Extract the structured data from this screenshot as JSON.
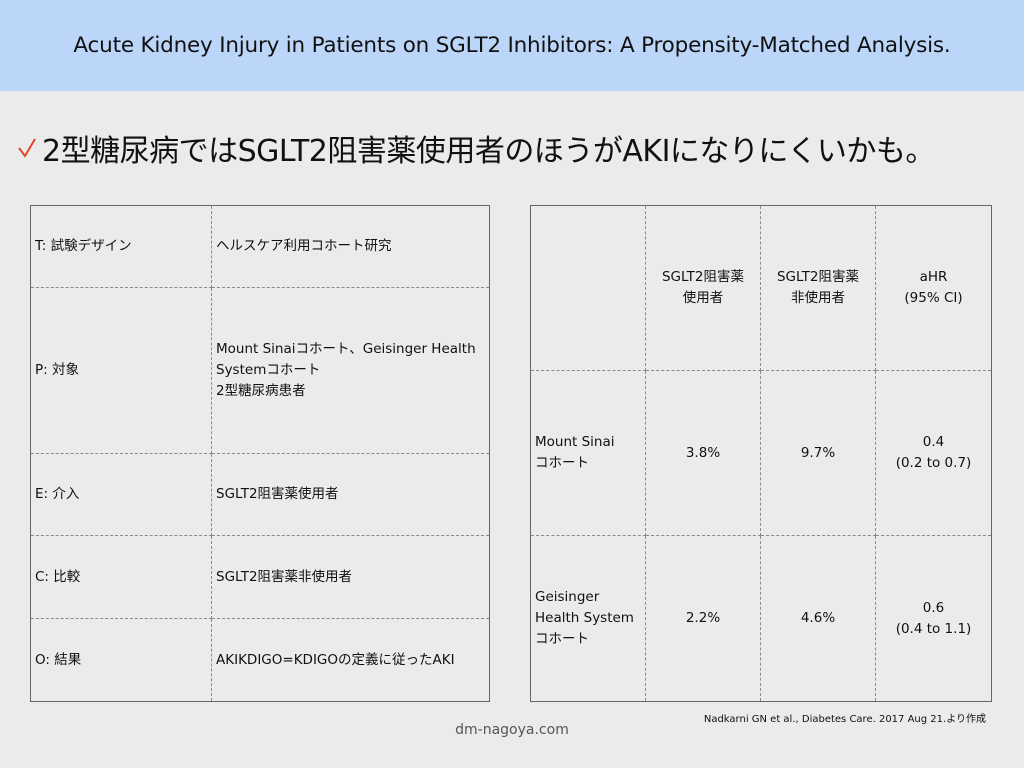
{
  "title": "Acute Kidney Injury in Patients on SGLT2 Inhibitors: A Propensity-Matched Analysis.",
  "headline": "2型糖尿病ではSGLT2阻害薬使用者のほうがAKIになりにくいかも。",
  "check_color": "#e0442c",
  "pico": [
    {
      "key": "T: 試験デザイン",
      "lines": [
        "ヘルスケア利用コホート研究"
      ]
    },
    {
      "key": "P: 対象",
      "lines": [
        "Mount Sinaiコホート、Geisinger Health Systemコホート",
        "2型糖尿病患者"
      ]
    },
    {
      "key": "E: 介入",
      "lines": [
        "SGLT2阻害薬使用者"
      ]
    },
    {
      "key": "C: 比較",
      "lines": [
        "SGLT2阻害薬非使用者"
      ]
    },
    {
      "key": "O: 結果",
      "lines": [
        "AKIKDIGO=KDIGOの定義に従ったAKI"
      ]
    }
  ],
  "results": {
    "headers": [
      [],
      [
        "SGLT2阻害薬",
        "使用者"
      ],
      [
        "SGLT2阻害薬",
        "非使用者"
      ],
      [
        "aHR",
        "(95% CI)"
      ]
    ],
    "rows": [
      {
        "label": [
          "Mount Sinai",
          "コホート"
        ],
        "users": "3.8%",
        "nonusers": "9.7%",
        "ahr": [
          "0.4",
          "(0.2 to 0.7)"
        ]
      },
      {
        "label": [
          "Geisinger",
          "Health System",
          "コホート"
        ],
        "users": "2.2%",
        "nonusers": "4.6%",
        "ahr": [
          "0.6",
          "(0.4 to 1.1)"
        ]
      }
    ]
  },
  "source": "Nadkarni GN et al., Diabetes Care. 2017 Aug 21.より作成",
  "site": "dm-nagoya.com"
}
